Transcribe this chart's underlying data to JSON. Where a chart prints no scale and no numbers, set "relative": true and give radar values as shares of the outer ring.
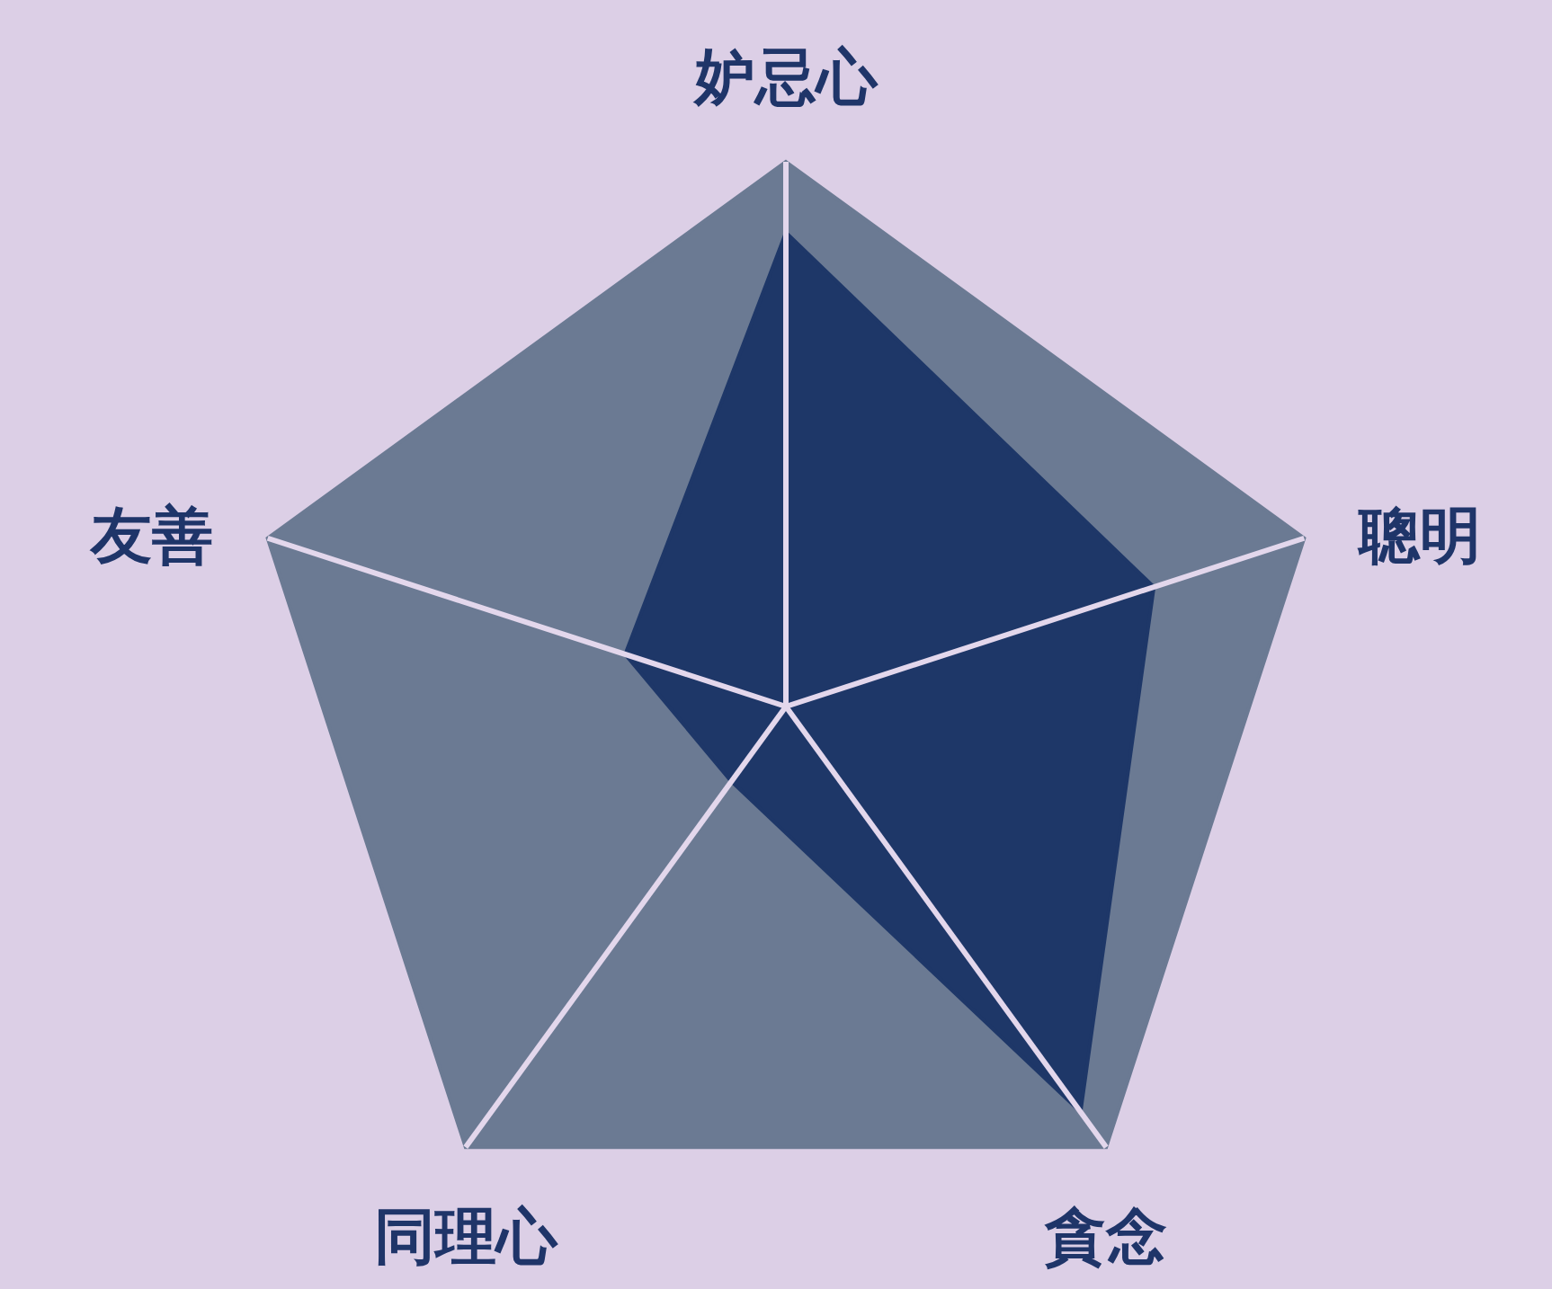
{
  "chart_data": {
    "type": "radar",
    "categories": [
      "妒忌心",
      "聰明",
      "貪念",
      "同理心",
      "友善"
    ],
    "relative": true,
    "grid": true,
    "series": [
      {
        "color": "#1e3768",
        "values": [
          0.87,
          0.71,
          0.92,
          0.17,
          0.31
        ]
      }
    ]
  }
}
